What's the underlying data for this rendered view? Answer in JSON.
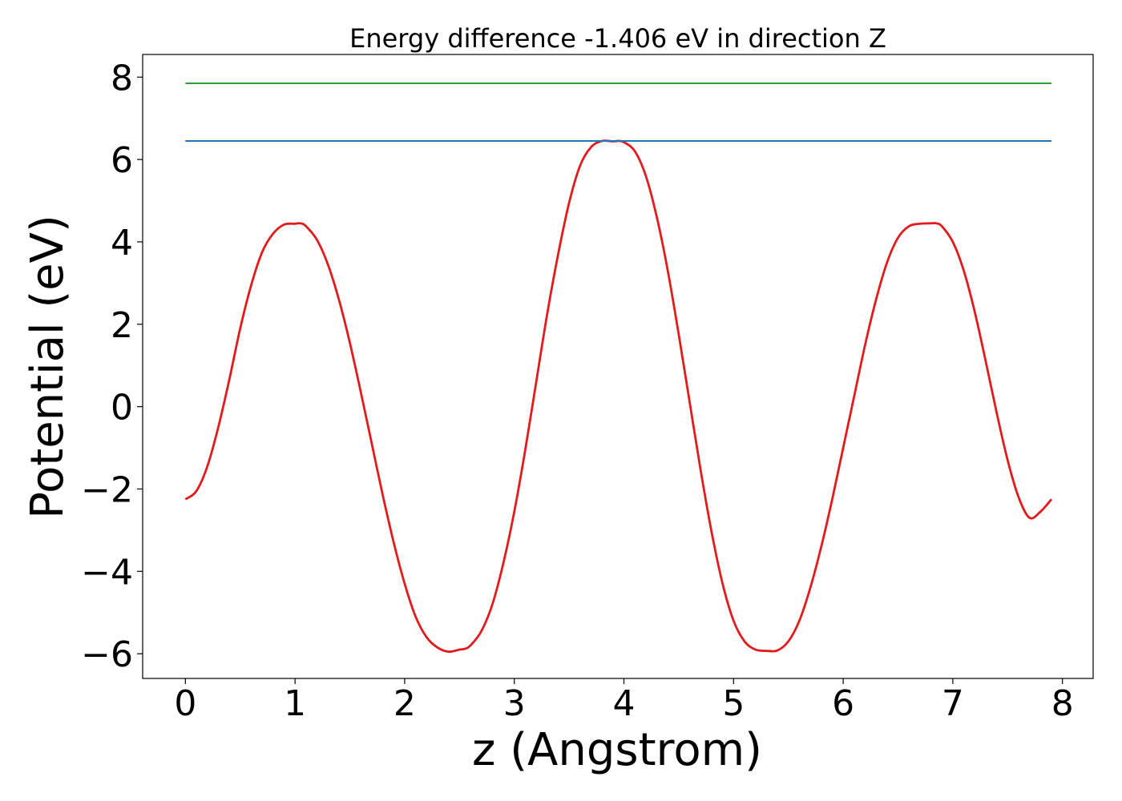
{
  "chart_data": {
    "type": "line",
    "title": "Energy difference -1.406 eV in direction Z",
    "xlabel": "z (Angstrom)",
    "ylabel": "Potential (eV)",
    "xlim": [
      -0.39,
      8.28
    ],
    "ylim": [
      -6.6,
      8.55
    ],
    "xticks": [
      0,
      1,
      2,
      3,
      4,
      5,
      6,
      7,
      8
    ],
    "yticks": [
      -6,
      -4,
      -2,
      0,
      2,
      4,
      6,
      8
    ],
    "xtick_labels": [
      "0",
      "1",
      "2",
      "3",
      "4",
      "5",
      "6",
      "7",
      "8"
    ],
    "ytick_labels": [
      "−6",
      "−4",
      "−2",
      "0",
      "2",
      "4",
      "6",
      "8"
    ],
    "grid": false,
    "series": [
      {
        "color": "#e31a1c",
        "style": "curve",
        "x": [
          0.0,
          0.1,
          0.2,
          0.3,
          0.4,
          0.5,
          0.6,
          0.7,
          0.8,
          0.9,
          1.0,
          1.05,
          1.1,
          1.2,
          1.3,
          1.4,
          1.5,
          1.6,
          1.7,
          1.8,
          1.9,
          2.0,
          2.1,
          2.2,
          2.3,
          2.4,
          2.5,
          2.55,
          2.6,
          2.7,
          2.8,
          2.9,
          3.0,
          3.1,
          3.2,
          3.3,
          3.4,
          3.5,
          3.6,
          3.7,
          3.8,
          3.9,
          3.95,
          4.0,
          4.1,
          4.2,
          4.3,
          4.4,
          4.5,
          4.6,
          4.7,
          4.8,
          4.9,
          5.0,
          5.1,
          5.2,
          5.3,
          5.4,
          5.5,
          5.6,
          5.7,
          5.8,
          5.9,
          6.0,
          6.1,
          6.2,
          6.3,
          6.4,
          6.5,
          6.6,
          6.7,
          6.8,
          6.85,
          6.9,
          7.0,
          7.1,
          7.2,
          7.3,
          7.4,
          7.5,
          7.6,
          7.7,
          7.8,
          7.9
        ],
        "y": [
          -2.25,
          -2.05,
          -1.45,
          -0.5,
          0.65,
          1.9,
          2.95,
          3.75,
          4.2,
          4.42,
          4.44,
          4.45,
          4.38,
          4.05,
          3.45,
          2.6,
          1.55,
          0.35,
          -0.9,
          -2.15,
          -3.3,
          -4.3,
          -5.1,
          -5.6,
          -5.85,
          -5.95,
          -5.9,
          -5.88,
          -5.8,
          -5.45,
          -4.8,
          -3.8,
          -2.55,
          -1.05,
          0.6,
          2.25,
          3.7,
          4.95,
          5.85,
          6.3,
          6.45,
          6.44,
          6.45,
          6.42,
          6.2,
          5.6,
          4.6,
          3.3,
          1.75,
          0.1,
          -1.55,
          -3.05,
          -4.3,
          -5.2,
          -5.7,
          -5.9,
          -5.93,
          -5.92,
          -5.7,
          -5.2,
          -4.4,
          -3.4,
          -2.25,
          -1.0,
          0.25,
          1.5,
          2.6,
          3.5,
          4.1,
          4.38,
          4.44,
          4.45,
          4.45,
          4.38,
          4.0,
          3.3,
          2.3,
          1.1,
          -0.15,
          -1.3,
          -2.2,
          -2.7,
          -2.55,
          -2.25
        ]
      },
      {
        "color": "#1f77b4",
        "style": "straight",
        "x": [
          0.0,
          7.9
        ],
        "y": [
          6.45,
          6.45
        ]
      },
      {
        "color": "#2ca02c",
        "style": "straight",
        "x": [
          0.0,
          7.9
        ],
        "y": [
          7.85,
          7.85
        ]
      }
    ]
  }
}
